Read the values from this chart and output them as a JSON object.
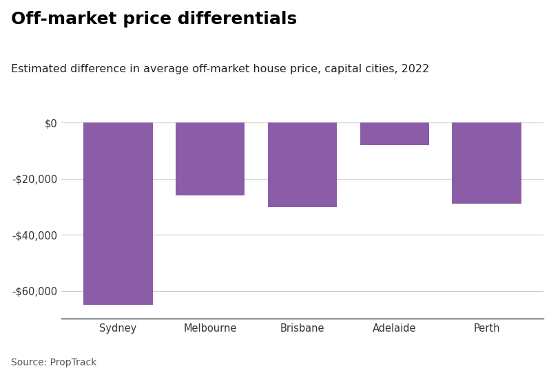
{
  "title": "Off-market price differentials",
  "subtitle": "Estimated difference in average off-market house price, capital cities, 2022",
  "source": "Source: PropTrack",
  "categories": [
    "Sydney",
    "Melbourne",
    "Brisbane",
    "Adelaide",
    "Perth"
  ],
  "values": [
    -65000,
    -26000,
    -30000,
    -8000,
    -29000
  ],
  "bar_color": "#8B5CA8",
  "ylim": [
    -70000,
    1000
  ],
  "yticks": [
    0,
    -20000,
    -40000,
    -60000
  ],
  "background_color": "#ffffff",
  "grid_color": "#cccccc",
  "title_fontsize": 18,
  "subtitle_fontsize": 11.5,
  "tick_fontsize": 10.5,
  "source_fontsize": 10,
  "bar_width": 0.75
}
